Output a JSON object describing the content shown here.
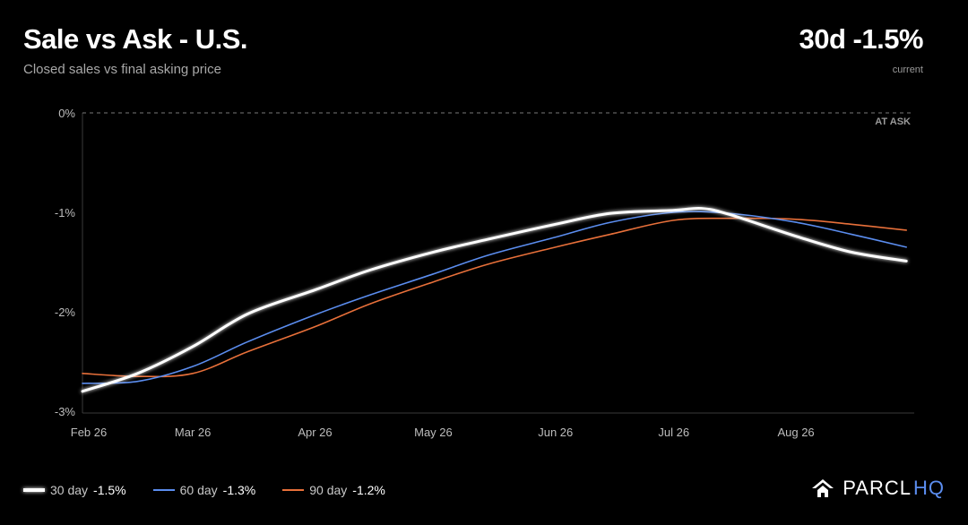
{
  "header": {
    "title": "Sale vs Ask - U.S.",
    "subtitle": "Closed sales vs final asking price",
    "headline": "30d -1.5%",
    "headline_caption": "current"
  },
  "chart_data": {
    "type": "line",
    "reference_label": "AT ASK",
    "reference_value": 0,
    "x_labels": [
      "Feb 26",
      "Mar 26",
      "Apr 26",
      "May 26",
      "Jun 26",
      "Jul 26",
      "Aug 26"
    ],
    "y_ticks": [
      0,
      -1,
      -2,
      -3
    ],
    "y_tick_labels": [
      "0%",
      "-1%",
      "-2%",
      "-3%"
    ],
    "ylim": [
      -3,
      0
    ],
    "grid": false,
    "legend_position": "bottom-left",
    "series": [
      {
        "name": "30 day",
        "legend_value": "-1.5%",
        "color": "#ffffff",
        "glow": true,
        "x": [
          "2026-02-01",
          "2026-02-15",
          "2026-03-01",
          "2026-03-15",
          "2026-04-01",
          "2026-04-15",
          "2026-05-01",
          "2026-05-15",
          "2026-06-01",
          "2026-06-15",
          "2026-07-01",
          "2026-07-08",
          "2026-07-15",
          "2026-08-01",
          "2026-08-15",
          "2026-08-29"
        ],
        "y": [
          -2.8,
          -2.62,
          -2.35,
          -2.02,
          -1.78,
          -1.58,
          -1.4,
          -1.27,
          -1.12,
          -1.01,
          -0.98,
          -0.96,
          -1.02,
          -1.24,
          -1.4,
          -1.49
        ]
      },
      {
        "name": "60 day",
        "legend_value": "-1.3%",
        "color": "#5b8def",
        "glow": false,
        "x": [
          "2026-02-01",
          "2026-02-15",
          "2026-03-01",
          "2026-03-15",
          "2026-04-01",
          "2026-04-15",
          "2026-05-01",
          "2026-05-15",
          "2026-06-01",
          "2026-06-15",
          "2026-07-01",
          "2026-07-15",
          "2026-08-01",
          "2026-08-15",
          "2026-08-29"
        ],
        "y": [
          -2.72,
          -2.7,
          -2.55,
          -2.3,
          -2.03,
          -1.83,
          -1.62,
          -1.43,
          -1.25,
          -1.1,
          -1.0,
          -1.01,
          -1.1,
          -1.22,
          -1.35
        ]
      },
      {
        "name": "90 day",
        "legend_value": "-1.2%",
        "color": "#e8703a",
        "glow": false,
        "x": [
          "2026-02-01",
          "2026-02-15",
          "2026-03-01",
          "2026-03-15",
          "2026-04-01",
          "2026-04-15",
          "2026-05-01",
          "2026-05-15",
          "2026-06-01",
          "2026-06-15",
          "2026-07-01",
          "2026-07-15",
          "2026-08-01",
          "2026-08-15",
          "2026-08-29"
        ],
        "y": [
          -2.62,
          -2.65,
          -2.62,
          -2.4,
          -2.15,
          -1.92,
          -1.7,
          -1.52,
          -1.35,
          -1.22,
          -1.08,
          -1.06,
          -1.07,
          -1.12,
          -1.18
        ]
      }
    ]
  },
  "brand": {
    "name": "PARCL",
    "suffix": "HQ"
  }
}
